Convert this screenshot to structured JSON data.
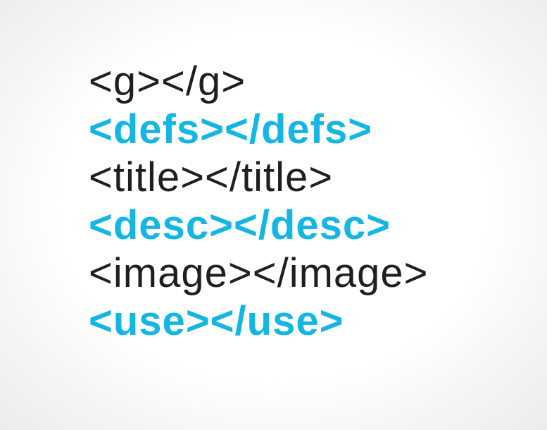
{
  "colors": {
    "dark_text": "#1f1f1f",
    "accent_blue": "#14b6e4",
    "background": "#ffffff"
  },
  "lines": [
    {
      "text": "<g></g>",
      "style": "dark"
    },
    {
      "text": "<defs></defs>",
      "style": "blue"
    },
    {
      "text": "<title></title>",
      "style": "dark"
    },
    {
      "text": "<desc></desc>",
      "style": "blue"
    },
    {
      "text": "<image></image>",
      "style": "dark"
    },
    {
      "text": "<use></use>",
      "style": "blue"
    }
  ]
}
